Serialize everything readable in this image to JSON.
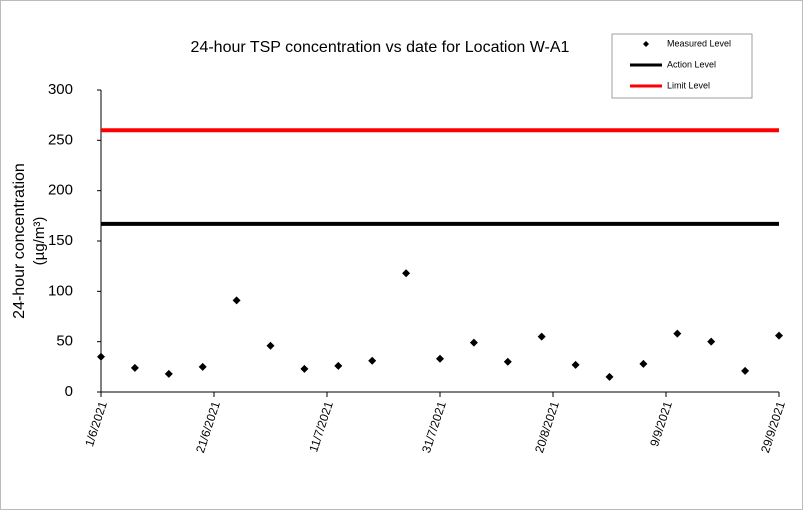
{
  "chart_data": {
    "type": "scatter",
    "title": "24-hour TSP concentration vs date for Location W-A1",
    "ylabel": [
      "24-hour concentration",
      "(µg/m³)"
    ],
    "xlim": [
      "1/6/2021",
      "29/9/2021"
    ],
    "xticks": [
      "1/6/2021",
      "21/6/2021",
      "11/7/2021",
      "31/7/2021",
      "20/8/2021",
      "9/9/2021",
      "29/9/2021"
    ],
    "ylim": [
      0,
      300
    ],
    "yticks": [
      0,
      50,
      100,
      150,
      200,
      250,
      300
    ],
    "grid": false,
    "legend": "top-right",
    "series": [
      {
        "name": "Measured Level",
        "color": "#000000",
        "style": "marker",
        "x": [
          "1/6/2021",
          "7/6/2021",
          "13/6/2021",
          "19/6/2021",
          "25/6/2021",
          "1/7/2021",
          "7/7/2021",
          "13/7/2021",
          "19/7/2021",
          "25/7/2021",
          "31/7/2021",
          "6/8/2021",
          "12/8/2021",
          "18/8/2021",
          "24/8/2021",
          "30/8/2021",
          "5/9/2021",
          "11/9/2021",
          "17/9/2021",
          "23/9/2021",
          "29/9/2021"
        ],
        "values": [
          35,
          24,
          18,
          25,
          91,
          46,
          23,
          26,
          31,
          118,
          33,
          49,
          30,
          55,
          27,
          15,
          28,
          58,
          50,
          21,
          56
        ]
      },
      {
        "name": "Action Level",
        "color": "#000000",
        "style": "line",
        "x": [
          "1/6/2021",
          "29/9/2021"
        ],
        "values": [
          167,
          167
        ]
      },
      {
        "name": "Limit Level",
        "color": "#ff0000",
        "style": "line",
        "x": [
          "1/6/2021",
          "29/9/2021"
        ],
        "values": [
          260,
          260
        ]
      }
    ]
  }
}
